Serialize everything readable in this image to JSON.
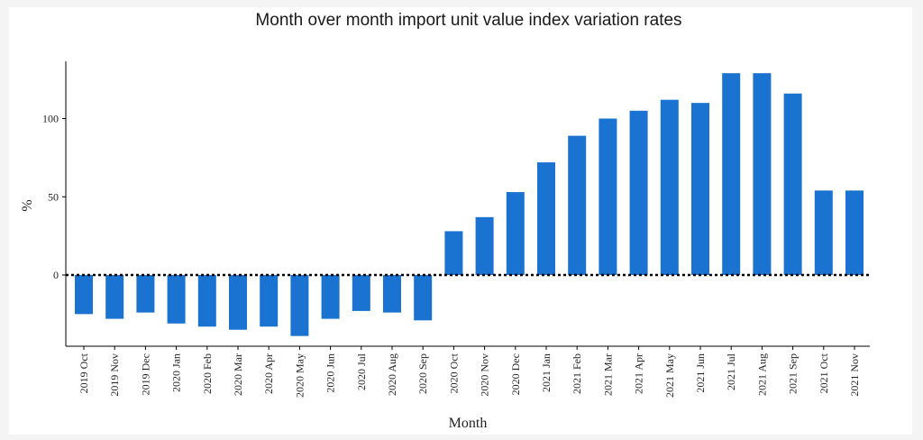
{
  "chart_data": {
    "type": "bar",
    "title": "Month over month import unit value index variation rates",
    "xlabel": "Month",
    "ylabel": "%",
    "ylim": [
      -45,
      137
    ],
    "yticks": [
      0,
      50,
      100
    ],
    "grid": false,
    "reference_line": {
      "y": 0,
      "style": "dotted"
    },
    "bar_color": "#1a73d0",
    "categories": [
      "2019 Oct",
      "2019 Nov",
      "2019 Dec",
      "2020 Jan",
      "2020 Feb",
      "2020 Mar",
      "2020 Apr",
      "2020 May",
      "2020 Jun",
      "2020 Jul",
      "2020 Aug",
      "2020 Sep",
      "2020 Oct",
      "2020 Nov",
      "2020 Dec",
      "2021 Jan",
      "2021 Feb",
      "2021 Mar",
      "2021 Apr",
      "2021 May",
      "2021 Jun",
      "2021 Jul",
      "2021 Aug",
      "2021 Sep",
      "2021 Oct",
      "2021 Nov"
    ],
    "values": [
      -25,
      -28,
      -24,
      -31,
      -33,
      -35,
      -33,
      -39,
      -28,
      -23,
      -24,
      -29,
      28,
      37,
      53,
      72,
      89,
      100,
      105,
      112,
      110,
      129,
      129,
      116,
      54,
      54
    ]
  }
}
